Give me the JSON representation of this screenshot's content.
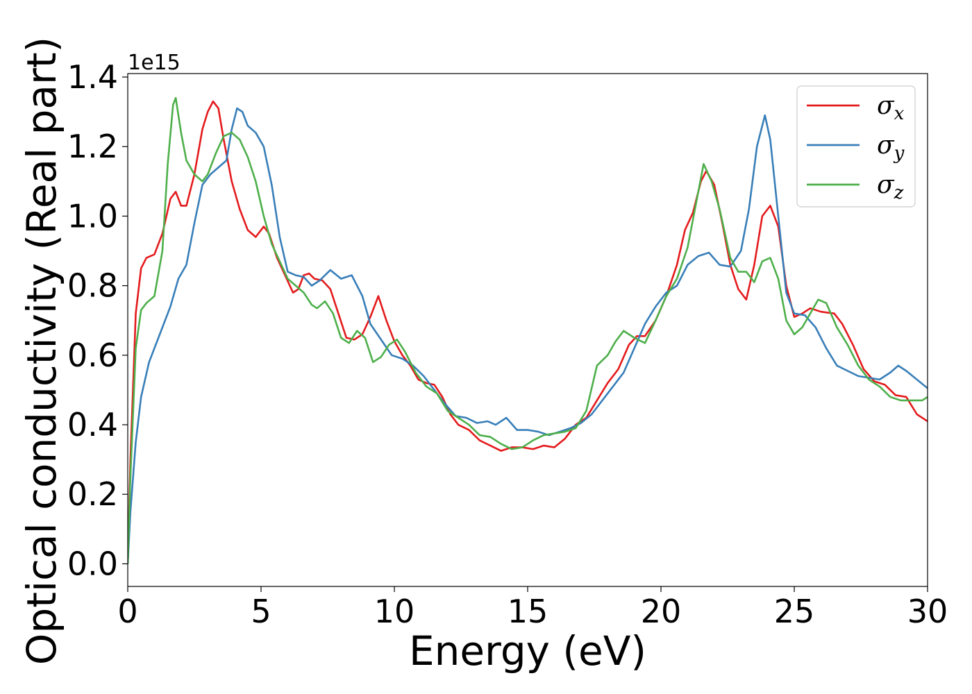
{
  "chart_data": {
    "type": "line",
    "title": "",
    "xlabel": "Energy (eV)",
    "ylabel": "Optical conductivity (Real part)",
    "y_offset_label": "1e15",
    "xlim": [
      0,
      30
    ],
    "ylim": [
      -0.065,
      1.41
    ],
    "xticks": [
      0,
      5,
      10,
      15,
      20,
      25,
      30
    ],
    "yticks": [
      0.0,
      0.2,
      0.4,
      0.6,
      0.8,
      1.0,
      1.2,
      1.4
    ],
    "xtick_labels": [
      "0",
      "5",
      "10",
      "15",
      "20",
      "25",
      "30"
    ],
    "ytick_labels": [
      "0.0",
      "0.2",
      "0.4",
      "0.6",
      "0.8",
      "1.0",
      "1.2",
      "1.4"
    ],
    "grid": false,
    "legend_position": "top-right",
    "series": [
      {
        "name": "σ",
        "subscript": "x",
        "color": "#e41a1c",
        "points": [
          [
            0,
            0
          ],
          [
            0.1,
            0.3
          ],
          [
            0.3,
            0.72
          ],
          [
            0.5,
            0.85
          ],
          [
            0.7,
            0.88
          ],
          [
            1.0,
            0.89
          ],
          [
            1.3,
            0.95
          ],
          [
            1.6,
            1.05
          ],
          [
            1.8,
            1.07
          ],
          [
            2.0,
            1.03
          ],
          [
            2.2,
            1.03
          ],
          [
            2.5,
            1.12
          ],
          [
            2.8,
            1.25
          ],
          [
            3.0,
            1.3
          ],
          [
            3.2,
            1.33
          ],
          [
            3.4,
            1.31
          ],
          [
            3.6,
            1.22
          ],
          [
            3.9,
            1.1
          ],
          [
            4.2,
            1.02
          ],
          [
            4.5,
            0.96
          ],
          [
            4.8,
            0.94
          ],
          [
            5.1,
            0.97
          ],
          [
            5.3,
            0.95
          ],
          [
            5.6,
            0.88
          ],
          [
            5.9,
            0.83
          ],
          [
            6.2,
            0.78
          ],
          [
            6.4,
            0.79
          ],
          [
            6.6,
            0.83
          ],
          [
            6.8,
            0.835
          ],
          [
            7.0,
            0.82
          ],
          [
            7.3,
            0.815
          ],
          [
            7.6,
            0.79
          ],
          [
            7.9,
            0.72
          ],
          [
            8.2,
            0.65
          ],
          [
            8.5,
            0.645
          ],
          [
            8.8,
            0.66
          ],
          [
            9.1,
            0.71
          ],
          [
            9.4,
            0.77
          ],
          [
            9.7,
            0.7
          ],
          [
            10.0,
            0.64
          ],
          [
            10.3,
            0.6
          ],
          [
            10.6,
            0.57
          ],
          [
            10.9,
            0.53
          ],
          [
            11.2,
            0.52
          ],
          [
            11.5,
            0.515
          ],
          [
            11.8,
            0.48
          ],
          [
            12.1,
            0.43
          ],
          [
            12.4,
            0.4
          ],
          [
            12.8,
            0.385
          ],
          [
            13.2,
            0.355
          ],
          [
            13.6,
            0.34
          ],
          [
            14.0,
            0.325
          ],
          [
            14.4,
            0.335
          ],
          [
            14.8,
            0.335
          ],
          [
            15.2,
            0.33
          ],
          [
            15.6,
            0.34
          ],
          [
            16.0,
            0.335
          ],
          [
            16.4,
            0.36
          ],
          [
            16.8,
            0.4
          ],
          [
            17.2,
            0.42
          ],
          [
            17.6,
            0.47
          ],
          [
            18.0,
            0.52
          ],
          [
            18.4,
            0.56
          ],
          [
            18.8,
            0.63
          ],
          [
            19.1,
            0.655
          ],
          [
            19.4,
            0.655
          ],
          [
            19.8,
            0.7
          ],
          [
            20.2,
            0.77
          ],
          [
            20.6,
            0.86
          ],
          [
            20.9,
            0.96
          ],
          [
            21.2,
            1.01
          ],
          [
            21.5,
            1.1
          ],
          [
            21.7,
            1.13
          ],
          [
            22.0,
            1.09
          ],
          [
            22.3,
            0.98
          ],
          [
            22.6,
            0.86
          ],
          [
            22.9,
            0.79
          ],
          [
            23.2,
            0.76
          ],
          [
            23.5,
            0.86
          ],
          [
            23.8,
            1.0
          ],
          [
            24.1,
            1.03
          ],
          [
            24.4,
            0.97
          ],
          [
            24.7,
            0.8
          ],
          [
            25.0,
            0.71
          ],
          [
            25.3,
            0.72
          ],
          [
            25.6,
            0.735
          ],
          [
            26.0,
            0.725
          ],
          [
            26.5,
            0.72
          ],
          [
            26.8,
            0.69
          ],
          [
            27.2,
            0.63
          ],
          [
            27.6,
            0.56
          ],
          [
            28.0,
            0.525
          ],
          [
            28.4,
            0.515
          ],
          [
            28.8,
            0.485
          ],
          [
            29.2,
            0.48
          ],
          [
            29.6,
            0.43
          ],
          [
            30.0,
            0.41
          ]
        ]
      },
      {
        "name": "σ",
        "subscript": "y",
        "color": "#377eb8",
        "points": [
          [
            0,
            0
          ],
          [
            0.1,
            0.15
          ],
          [
            0.3,
            0.35
          ],
          [
            0.5,
            0.48
          ],
          [
            0.8,
            0.58
          ],
          [
            1.2,
            0.66
          ],
          [
            1.6,
            0.74
          ],
          [
            1.9,
            0.82
          ],
          [
            2.2,
            0.86
          ],
          [
            2.5,
            0.98
          ],
          [
            2.8,
            1.09
          ],
          [
            3.1,
            1.12
          ],
          [
            3.4,
            1.14
          ],
          [
            3.7,
            1.16
          ],
          [
            3.9,
            1.25
          ],
          [
            4.1,
            1.31
          ],
          [
            4.3,
            1.3
          ],
          [
            4.5,
            1.26
          ],
          [
            4.8,
            1.24
          ],
          [
            5.1,
            1.2
          ],
          [
            5.4,
            1.09
          ],
          [
            5.7,
            0.94
          ],
          [
            6.0,
            0.84
          ],
          [
            6.3,
            0.83
          ],
          [
            6.6,
            0.825
          ],
          [
            6.9,
            0.8
          ],
          [
            7.2,
            0.815
          ],
          [
            7.6,
            0.845
          ],
          [
            8.0,
            0.82
          ],
          [
            8.4,
            0.83
          ],
          [
            8.8,
            0.77
          ],
          [
            9.1,
            0.69
          ],
          [
            9.5,
            0.645
          ],
          [
            9.9,
            0.6
          ],
          [
            10.3,
            0.59
          ],
          [
            10.7,
            0.57
          ],
          [
            11.1,
            0.54
          ],
          [
            11.5,
            0.5
          ],
          [
            11.9,
            0.46
          ],
          [
            12.3,
            0.425
          ],
          [
            12.7,
            0.42
          ],
          [
            13.1,
            0.405
          ],
          [
            13.5,
            0.41
          ],
          [
            13.8,
            0.4
          ],
          [
            14.2,
            0.42
          ],
          [
            14.6,
            0.385
          ],
          [
            15.0,
            0.385
          ],
          [
            15.4,
            0.38
          ],
          [
            15.8,
            0.37
          ],
          [
            16.2,
            0.38
          ],
          [
            16.6,
            0.39
          ],
          [
            17.0,
            0.405
          ],
          [
            17.4,
            0.43
          ],
          [
            17.8,
            0.47
          ],
          [
            18.2,
            0.51
          ],
          [
            18.6,
            0.55
          ],
          [
            19.0,
            0.62
          ],
          [
            19.4,
            0.69
          ],
          [
            19.8,
            0.74
          ],
          [
            20.2,
            0.78
          ],
          [
            20.6,
            0.8
          ],
          [
            21.0,
            0.86
          ],
          [
            21.4,
            0.885
          ],
          [
            21.8,
            0.895
          ],
          [
            22.2,
            0.86
          ],
          [
            22.6,
            0.855
          ],
          [
            23.0,
            0.9
          ],
          [
            23.3,
            1.02
          ],
          [
            23.6,
            1.2
          ],
          [
            23.9,
            1.29
          ],
          [
            24.1,
            1.22
          ],
          [
            24.4,
            1.0
          ],
          [
            24.7,
            0.78
          ],
          [
            25.0,
            0.72
          ],
          [
            25.4,
            0.715
          ],
          [
            25.8,
            0.68
          ],
          [
            26.2,
            0.62
          ],
          [
            26.6,
            0.57
          ],
          [
            27.0,
            0.555
          ],
          [
            27.4,
            0.54
          ],
          [
            27.8,
            0.535
          ],
          [
            28.2,
            0.53
          ],
          [
            28.6,
            0.55
          ],
          [
            28.9,
            0.57
          ],
          [
            29.2,
            0.555
          ],
          [
            29.6,
            0.53
          ],
          [
            30.0,
            0.505
          ]
        ]
      },
      {
        "name": "σ",
        "subscript": "z",
        "color": "#4daf4a",
        "points": [
          [
            0,
            0
          ],
          [
            0.1,
            0.25
          ],
          [
            0.3,
            0.62
          ],
          [
            0.5,
            0.73
          ],
          [
            0.7,
            0.75
          ],
          [
            1.0,
            0.77
          ],
          [
            1.3,
            0.9
          ],
          [
            1.5,
            1.15
          ],
          [
            1.7,
            1.32
          ],
          [
            1.8,
            1.34
          ],
          [
            2.0,
            1.24
          ],
          [
            2.2,
            1.16
          ],
          [
            2.5,
            1.12
          ],
          [
            2.8,
            1.1
          ],
          [
            3.0,
            1.12
          ],
          [
            3.3,
            1.18
          ],
          [
            3.6,
            1.23
          ],
          [
            3.9,
            1.24
          ],
          [
            4.2,
            1.22
          ],
          [
            4.5,
            1.17
          ],
          [
            4.8,
            1.1
          ],
          [
            5.1,
            1.0
          ],
          [
            5.4,
            0.92
          ],
          [
            5.7,
            0.87
          ],
          [
            6.0,
            0.82
          ],
          [
            6.3,
            0.8
          ],
          [
            6.6,
            0.78
          ],
          [
            6.9,
            0.745
          ],
          [
            7.1,
            0.735
          ],
          [
            7.4,
            0.755
          ],
          [
            7.7,
            0.72
          ],
          [
            8.0,
            0.65
          ],
          [
            8.3,
            0.635
          ],
          [
            8.6,
            0.67
          ],
          [
            8.9,
            0.65
          ],
          [
            9.2,
            0.58
          ],
          [
            9.5,
            0.595
          ],
          [
            9.8,
            0.63
          ],
          [
            10.1,
            0.645
          ],
          [
            10.4,
            0.61
          ],
          [
            10.8,
            0.55
          ],
          [
            11.2,
            0.51
          ],
          [
            11.6,
            0.49
          ],
          [
            12.0,
            0.44
          ],
          [
            12.4,
            0.42
          ],
          [
            12.8,
            0.4
          ],
          [
            13.2,
            0.37
          ],
          [
            13.6,
            0.365
          ],
          [
            14.0,
            0.345
          ],
          [
            14.4,
            0.33
          ],
          [
            14.8,
            0.335
          ],
          [
            15.2,
            0.355
          ],
          [
            15.6,
            0.37
          ],
          [
            16.0,
            0.375
          ],
          [
            16.4,
            0.38
          ],
          [
            16.8,
            0.39
          ],
          [
            17.2,
            0.44
          ],
          [
            17.6,
            0.57
          ],
          [
            18.0,
            0.6
          ],
          [
            18.3,
            0.64
          ],
          [
            18.6,
            0.67
          ],
          [
            19.0,
            0.65
          ],
          [
            19.4,
            0.635
          ],
          [
            19.8,
            0.7
          ],
          [
            20.2,
            0.77
          ],
          [
            20.6,
            0.82
          ],
          [
            21.0,
            0.91
          ],
          [
            21.3,
            1.03
          ],
          [
            21.6,
            1.15
          ],
          [
            21.9,
            1.1
          ],
          [
            22.2,
            1.02
          ],
          [
            22.6,
            0.88
          ],
          [
            22.9,
            0.84
          ],
          [
            23.2,
            0.84
          ],
          [
            23.5,
            0.81
          ],
          [
            23.8,
            0.87
          ],
          [
            24.1,
            0.88
          ],
          [
            24.4,
            0.82
          ],
          [
            24.7,
            0.7
          ],
          [
            25.0,
            0.66
          ],
          [
            25.3,
            0.68
          ],
          [
            25.6,
            0.72
          ],
          [
            25.9,
            0.76
          ],
          [
            26.2,
            0.75
          ],
          [
            26.6,
            0.68
          ],
          [
            27.0,
            0.63
          ],
          [
            27.4,
            0.57
          ],
          [
            27.8,
            0.53
          ],
          [
            28.2,
            0.51
          ],
          [
            28.6,
            0.48
          ],
          [
            29.0,
            0.47
          ],
          [
            29.4,
            0.47
          ],
          [
            29.8,
            0.47
          ],
          [
            30.0,
            0.48
          ]
        ]
      }
    ]
  }
}
